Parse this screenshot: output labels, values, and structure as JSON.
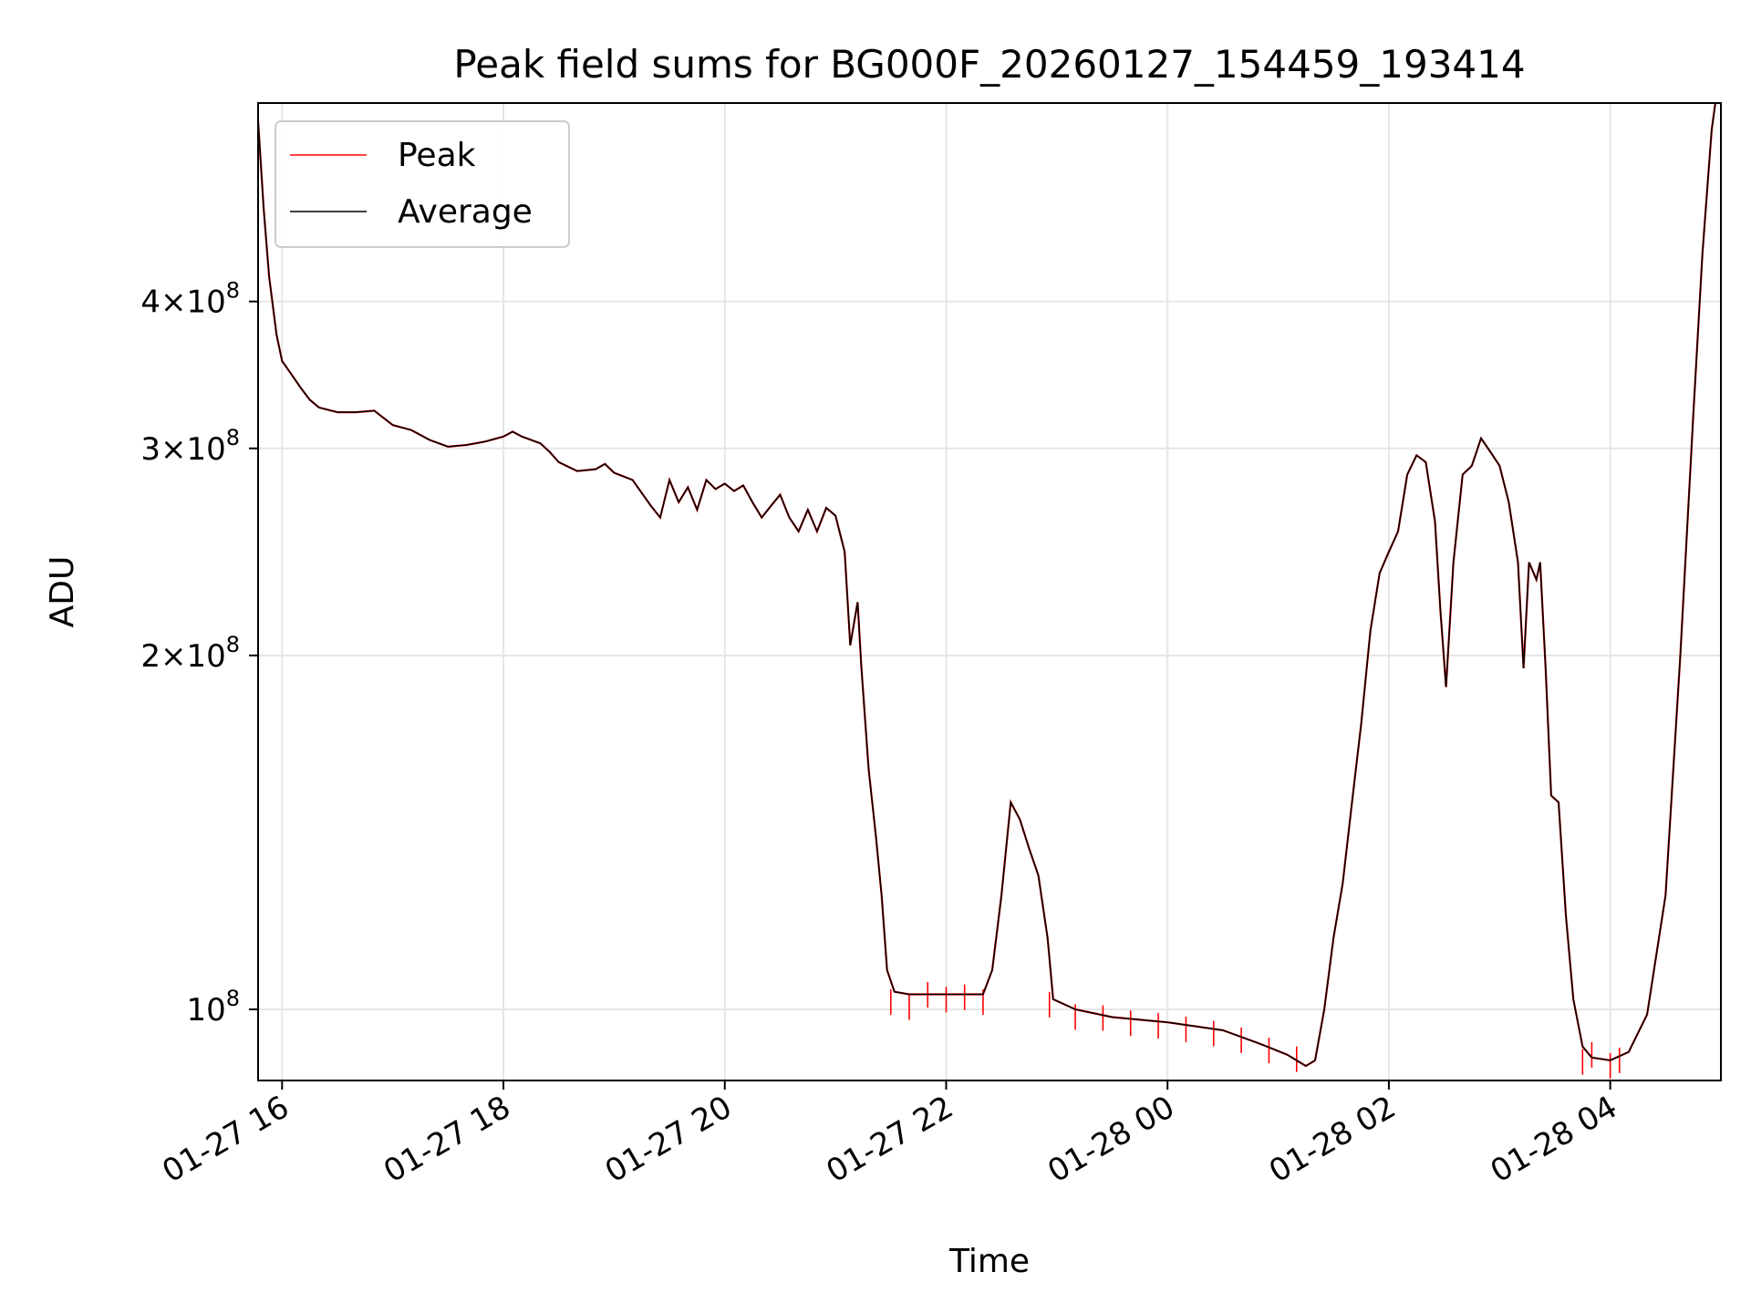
{
  "chart_data": {
    "type": "line",
    "title": "Peak field sums for BG000F_20260127_154459_193414",
    "xlabel": "Time",
    "ylabel": "ADU",
    "y_scale": "log",
    "grid": true,
    "legend_position": "top-left",
    "xlim": [
      "2026-01-27 15:47",
      "2026-01-28 05:00"
    ],
    "ylim": [
      87000000,
      590000000
    ],
    "x_ticks": [
      {
        "t": "2026-01-27 16:00",
        "label": "01-27 16"
      },
      {
        "t": "2026-01-27 18:00",
        "label": "01-27 18"
      },
      {
        "t": "2026-01-27 20:00",
        "label": "01-27 20"
      },
      {
        "t": "2026-01-27 22:00",
        "label": "01-27 22"
      },
      {
        "t": "2026-01-28 00:00",
        "label": "01-28 00"
      },
      {
        "t": "2026-01-28 02:00",
        "label": "01-28 02"
      },
      {
        "t": "2026-01-28 04:00",
        "label": "01-28 04"
      }
    ],
    "y_ticks": [
      {
        "value": 100000000,
        "mantissa": "",
        "exponent": "8"
      },
      {
        "value": 200000000,
        "mantissa": "2",
        "exponent": "8"
      },
      {
        "value": 300000000,
        "mantissa": "3",
        "exponent": "8"
      },
      {
        "value": 400000000,
        "mantissa": "4",
        "exponent": "8"
      }
    ],
    "series": [
      {
        "name": "Peak",
        "color": "#ff0000",
        "points": [
          [
            "2026-01-27 21:30",
            104000000
          ],
          [
            "2026-01-27 21:40",
            103000000
          ],
          [
            "2026-01-27 21:50",
            105500000
          ],
          [
            "2026-01-27 22:00",
            104500000
          ],
          [
            "2026-01-27 22:10",
            105000000
          ],
          [
            "2026-01-27 22:20",
            104000000
          ],
          [
            "2026-01-27 22:56",
            103500000
          ],
          [
            "2026-01-27 23:10",
            101000000
          ],
          [
            "2026-01-27 23:25",
            100800000
          ],
          [
            "2026-01-27 23:40",
            99800000
          ],
          [
            "2026-01-27 23:55",
            99300000
          ],
          [
            "2026-01-28 00:10",
            98600000
          ],
          [
            "2026-01-28 00:25",
            97800000
          ],
          [
            "2026-01-28 00:40",
            96500000
          ],
          [
            "2026-01-28 00:55",
            94600000
          ],
          [
            "2026-01-28 01:10",
            93000000
          ],
          [
            "2026-01-28 03:45",
            92500000
          ],
          [
            "2026-01-28 03:50",
            93800000
          ],
          [
            "2026-01-28 04:00",
            91800000
          ],
          [
            "2026-01-28 04:05",
            92800000
          ]
        ]
      },
      {
        "name": "Average",
        "color": "#000000",
        "points": [
          [
            "2026-01-27 15:47",
            570000000
          ],
          [
            "2026-01-27 15:50",
            480000000
          ],
          [
            "2026-01-27 15:53",
            420000000
          ],
          [
            "2026-01-27 15:57",
            375000000
          ],
          [
            "2026-01-27 16:00",
            356000000
          ],
          [
            "2026-01-27 16:05",
            347000000
          ],
          [
            "2026-01-27 16:10",
            338000000
          ],
          [
            "2026-01-27 16:15",
            330000000
          ],
          [
            "2026-01-27 16:20",
            325000000
          ],
          [
            "2026-01-27 16:30",
            322000000
          ],
          [
            "2026-01-27 16:40",
            322000000
          ],
          [
            "2026-01-27 16:50",
            323000000
          ],
          [
            "2026-01-27 17:00",
            314000000
          ],
          [
            "2026-01-27 17:10",
            311000000
          ],
          [
            "2026-01-27 17:20",
            305000000
          ],
          [
            "2026-01-27 17:30",
            301000000
          ],
          [
            "2026-01-27 17:40",
            302000000
          ],
          [
            "2026-01-27 17:50",
            304000000
          ],
          [
            "2026-01-27 18:00",
            307000000
          ],
          [
            "2026-01-27 18:05",
            310000000
          ],
          [
            "2026-01-27 18:10",
            307000000
          ],
          [
            "2026-01-27 18:20",
            303000000
          ],
          [
            "2026-01-27 18:25",
            298000000
          ],
          [
            "2026-01-27 18:30",
            292000000
          ],
          [
            "2026-01-27 18:40",
            287000000
          ],
          [
            "2026-01-27 18:50",
            288000000
          ],
          [
            "2026-01-27 18:55",
            291000000
          ],
          [
            "2026-01-27 19:00",
            286000000
          ],
          [
            "2026-01-27 19:10",
            282000000
          ],
          [
            "2026-01-27 19:20",
            268000000
          ],
          [
            "2026-01-27 19:25",
            262000000
          ],
          [
            "2026-01-27 19:30",
            282000000
          ],
          [
            "2026-01-27 19:35",
            270000000
          ],
          [
            "2026-01-27 19:40",
            278000000
          ],
          [
            "2026-01-27 19:45",
            266000000
          ],
          [
            "2026-01-27 19:50",
            282000000
          ],
          [
            "2026-01-27 19:55",
            277000000
          ],
          [
            "2026-01-27 20:00",
            280000000
          ],
          [
            "2026-01-27 20:05",
            276000000
          ],
          [
            "2026-01-27 20:10",
            279000000
          ],
          [
            "2026-01-27 20:15",
            270000000
          ],
          [
            "2026-01-27 20:20",
            262000000
          ],
          [
            "2026-01-27 20:25",
            268000000
          ],
          [
            "2026-01-27 20:30",
            274000000
          ],
          [
            "2026-01-27 20:35",
            262000000
          ],
          [
            "2026-01-27 20:40",
            255000000
          ],
          [
            "2026-01-27 20:45",
            266000000
          ],
          [
            "2026-01-27 20:50",
            255000000
          ],
          [
            "2026-01-27 20:55",
            267000000
          ],
          [
            "2026-01-27 21:00",
            263000000
          ],
          [
            "2026-01-27 21:05",
            245000000
          ],
          [
            "2026-01-27 21:08",
            204000000
          ],
          [
            "2026-01-27 21:12",
            222000000
          ],
          [
            "2026-01-27 21:14",
            196000000
          ],
          [
            "2026-01-27 21:18",
            160000000
          ],
          [
            "2026-01-27 21:22",
            140000000
          ],
          [
            "2026-01-27 21:25",
            125000000
          ],
          [
            "2026-01-27 21:28",
            108000000
          ],
          [
            "2026-01-27 21:32",
            103500000
          ],
          [
            "2026-01-27 21:40",
            103000000
          ],
          [
            "2026-01-27 22:00",
            103000000
          ],
          [
            "2026-01-27 22:20",
            103000000
          ],
          [
            "2026-01-27 22:25",
            108000000
          ],
          [
            "2026-01-27 22:30",
            125000000
          ],
          [
            "2026-01-27 22:35",
            150000000
          ],
          [
            "2026-01-27 22:40",
            145000000
          ],
          [
            "2026-01-27 22:45",
            137000000
          ],
          [
            "2026-01-27 22:50",
            130000000
          ],
          [
            "2026-01-27 22:55",
            115000000
          ],
          [
            "2026-01-27 22:58",
            102000000
          ],
          [
            "2026-01-27 23:10",
            100000000
          ],
          [
            "2026-01-27 23:30",
            98500000
          ],
          [
            "2026-01-28 00:00",
            97500000
          ],
          [
            "2026-01-28 00:30",
            96000000
          ],
          [
            "2026-01-28 00:50",
            93500000
          ],
          [
            "2026-01-28 01:05",
            91500000
          ],
          [
            "2026-01-28 01:15",
            89500000
          ],
          [
            "2026-01-28 01:20",
            90500000
          ],
          [
            "2026-01-28 01:25",
            100000000
          ],
          [
            "2026-01-28 01:30",
            115000000
          ],
          [
            "2026-01-28 01:35",
            128000000
          ],
          [
            "2026-01-28 01:40",
            150000000
          ],
          [
            "2026-01-28 01:45",
            175000000
          ],
          [
            "2026-01-28 01:50",
            210000000
          ],
          [
            "2026-01-28 01:55",
            235000000
          ],
          [
            "2026-01-28 02:00",
            245000000
          ],
          [
            "2026-01-28 02:05",
            255000000
          ],
          [
            "2026-01-28 02:10",
            285000000
          ],
          [
            "2026-01-28 02:15",
            296000000
          ],
          [
            "2026-01-28 02:20",
            292000000
          ],
          [
            "2026-01-28 02:25",
            260000000
          ],
          [
            "2026-01-28 02:28",
            218000000
          ],
          [
            "2026-01-28 02:31",
            188000000
          ],
          [
            "2026-01-28 02:35",
            240000000
          ],
          [
            "2026-01-28 02:40",
            285000000
          ],
          [
            "2026-01-28 02:45",
            290000000
          ],
          [
            "2026-01-28 02:50",
            306000000
          ],
          [
            "2026-01-28 02:55",
            298000000
          ],
          [
            "2026-01-28 03:00",
            290000000
          ],
          [
            "2026-01-28 03:05",
            270000000
          ],
          [
            "2026-01-28 03:10",
            240000000
          ],
          [
            "2026-01-28 03:13",
            195000000
          ],
          [
            "2026-01-28 03:16",
            240000000
          ],
          [
            "2026-01-28 03:20",
            232000000
          ],
          [
            "2026-01-28 03:22",
            240000000
          ],
          [
            "2026-01-28 03:25",
            195000000
          ],
          [
            "2026-01-28 03:28",
            152000000
          ],
          [
            "2026-01-28 03:32",
            150000000
          ],
          [
            "2026-01-28 03:36",
            120000000
          ],
          [
            "2026-01-28 03:40",
            102000000
          ],
          [
            "2026-01-28 03:45",
            93000000
          ],
          [
            "2026-01-28 03:50",
            91000000
          ],
          [
            "2026-01-28 04:00",
            90500000
          ],
          [
            "2026-01-28 04:10",
            92000000
          ],
          [
            "2026-01-28 04:20",
            99000000
          ],
          [
            "2026-01-28 04:30",
            125000000
          ],
          [
            "2026-01-28 04:38",
            200000000
          ],
          [
            "2026-01-28 04:45",
            320000000
          ],
          [
            "2026-01-28 04:50",
            440000000
          ],
          [
            "2026-01-28 04:55",
            560000000
          ],
          [
            "2026-01-28 04:57",
            590000000
          ]
        ]
      }
    ]
  }
}
